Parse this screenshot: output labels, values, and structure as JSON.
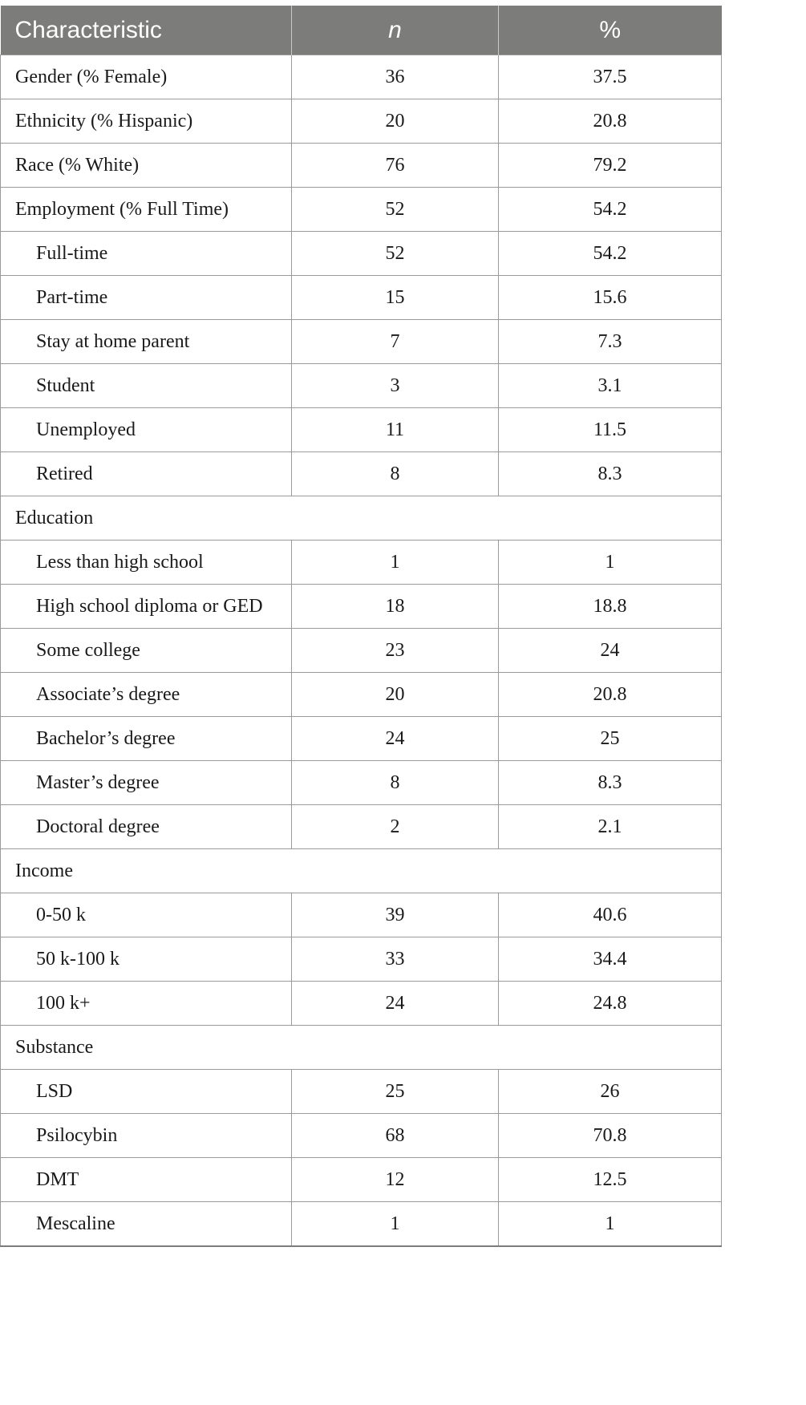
{
  "table": {
    "headers": [
      "Characteristic",
      "n",
      "%"
    ],
    "rows": [
      {
        "type": "row",
        "indent": false,
        "label": "Gender (% Female)",
        "n": "36",
        "pct": "37.5"
      },
      {
        "type": "row",
        "indent": false,
        "label": "Ethnicity (% Hispanic)",
        "n": "20",
        "pct": "20.8"
      },
      {
        "type": "row",
        "indent": false,
        "label": "Race (% White)",
        "n": "76",
        "pct": "79.2"
      },
      {
        "type": "row",
        "indent": false,
        "label": "Employment (% Full Time)",
        "n": "52",
        "pct": "54.2"
      },
      {
        "type": "row",
        "indent": true,
        "label": "Full-time",
        "n": "52",
        "pct": "54.2"
      },
      {
        "type": "row",
        "indent": true,
        "label": "Part-time",
        "n": "15",
        "pct": "15.6"
      },
      {
        "type": "row",
        "indent": true,
        "label": "Stay at home parent",
        "n": "7",
        "pct": "7.3"
      },
      {
        "type": "row",
        "indent": true,
        "label": "Student",
        "n": "3",
        "pct": "3.1"
      },
      {
        "type": "row",
        "indent": true,
        "label": "Unemployed",
        "n": "11",
        "pct": "11.5"
      },
      {
        "type": "row",
        "indent": true,
        "label": "Retired",
        "n": "8",
        "pct": "8.3"
      },
      {
        "type": "section",
        "label": "Education"
      },
      {
        "type": "row",
        "indent": true,
        "label": "Less than high school",
        "n": "1",
        "pct": "1"
      },
      {
        "type": "row",
        "indent": true,
        "label": "High school diploma or GED",
        "n": "18",
        "pct": "18.8"
      },
      {
        "type": "row",
        "indent": true,
        "label": "Some college",
        "n": "23",
        "pct": "24"
      },
      {
        "type": "row",
        "indent": true,
        "label": "Associate’s degree",
        "n": "20",
        "pct": "20.8"
      },
      {
        "type": "row",
        "indent": true,
        "label": "Bachelor’s degree",
        "n": "24",
        "pct": "25"
      },
      {
        "type": "row",
        "indent": true,
        "label": "Master’s degree",
        "n": "8",
        "pct": "8.3"
      },
      {
        "type": "row",
        "indent": true,
        "label": "Doctoral degree",
        "n": "2",
        "pct": "2.1"
      },
      {
        "type": "section",
        "label": "Income"
      },
      {
        "type": "row",
        "indent": true,
        "label": "0-50 k",
        "n": "39",
        "pct": "40.6"
      },
      {
        "type": "row",
        "indent": true,
        "label": "50 k-100 k",
        "n": "33",
        "pct": "34.4"
      },
      {
        "type": "row",
        "indent": true,
        "label": "100 k+",
        "n": "24",
        "pct": "24.8"
      },
      {
        "type": "section",
        "label": "Substance"
      },
      {
        "type": "row",
        "indent": true,
        "label": "LSD",
        "n": "25",
        "pct": "26"
      },
      {
        "type": "row",
        "indent": true,
        "label": "Psilocybin",
        "n": "68",
        "pct": "70.8"
      },
      {
        "type": "row",
        "indent": true,
        "label": "DMT",
        "n": "12",
        "pct": "12.5"
      },
      {
        "type": "row",
        "indent": true,
        "label": "Mescaline",
        "n": "1",
        "pct": "1"
      }
    ]
  },
  "colors": {
    "header_bg": "#7c7c7b",
    "header_text": "#ffffff",
    "grid": "#9a9a9a",
    "text": "#1a1a1a"
  }
}
